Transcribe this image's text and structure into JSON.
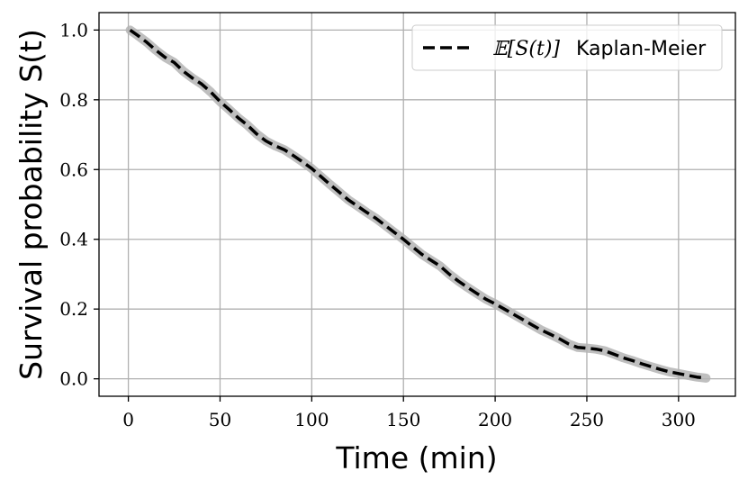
{
  "chart_data": {
    "type": "line",
    "title": "",
    "xlabel": "Time (min)",
    "ylabel": "Survival probability S(t)",
    "xlim": [
      -16,
      331
    ],
    "ylim": [
      -0.05,
      1.05
    ],
    "xticks": [
      0,
      50,
      100,
      150,
      200,
      250,
      300
    ],
    "xtick_labels": [
      "0",
      "50",
      "100",
      "150",
      "200",
      "250",
      "300"
    ],
    "yticks": [
      0.0,
      0.2,
      0.4,
      0.6,
      0.8,
      1.0
    ],
    "ytick_labels": [
      "0.0",
      "0.2",
      "0.4",
      "0.6",
      "0.8",
      "1.0"
    ],
    "grid": true,
    "legend_position": "top-right",
    "series": [
      {
        "name": "Kaplan-Meier",
        "legend_math": "𝔼[S(t)]",
        "style": "dashed",
        "color": "#000000",
        "band_color": "#b4b4b4",
        "x": [
          1,
          5,
          10,
          15,
          20,
          25,
          30,
          35,
          40,
          45,
          50,
          55,
          60,
          65,
          70,
          75,
          80,
          85,
          90,
          95,
          100,
          105,
          110,
          115,
          120,
          125,
          130,
          135,
          140,
          145,
          150,
          155,
          160,
          165,
          170,
          175,
          180,
          185,
          190,
          195,
          200,
          205,
          210,
          215,
          220,
          225,
          230,
          235,
          240,
          245,
          250,
          255,
          260,
          265,
          270,
          275,
          280,
          285,
          290,
          295,
          300,
          305,
          310,
          315
        ],
        "y": [
          1.0,
          0.985,
          0.965,
          0.942,
          0.922,
          0.907,
          0.882,
          0.862,
          0.845,
          0.822,
          0.795,
          0.772,
          0.748,
          0.727,
          0.702,
          0.682,
          0.668,
          0.657,
          0.64,
          0.622,
          0.603,
          0.58,
          0.557,
          0.535,
          0.513,
          0.495,
          0.477,
          0.46,
          0.44,
          0.42,
          0.4,
          0.378,
          0.357,
          0.34,
          0.323,
          0.3,
          0.28,
          0.262,
          0.245,
          0.228,
          0.215,
          0.2,
          0.185,
          0.17,
          0.155,
          0.14,
          0.128,
          0.115,
          0.1,
          0.09,
          0.088,
          0.085,
          0.08,
          0.07,
          0.06,
          0.052,
          0.043,
          0.035,
          0.027,
          0.02,
          0.015,
          0.01,
          0.005,
          0.002
        ]
      }
    ]
  }
}
